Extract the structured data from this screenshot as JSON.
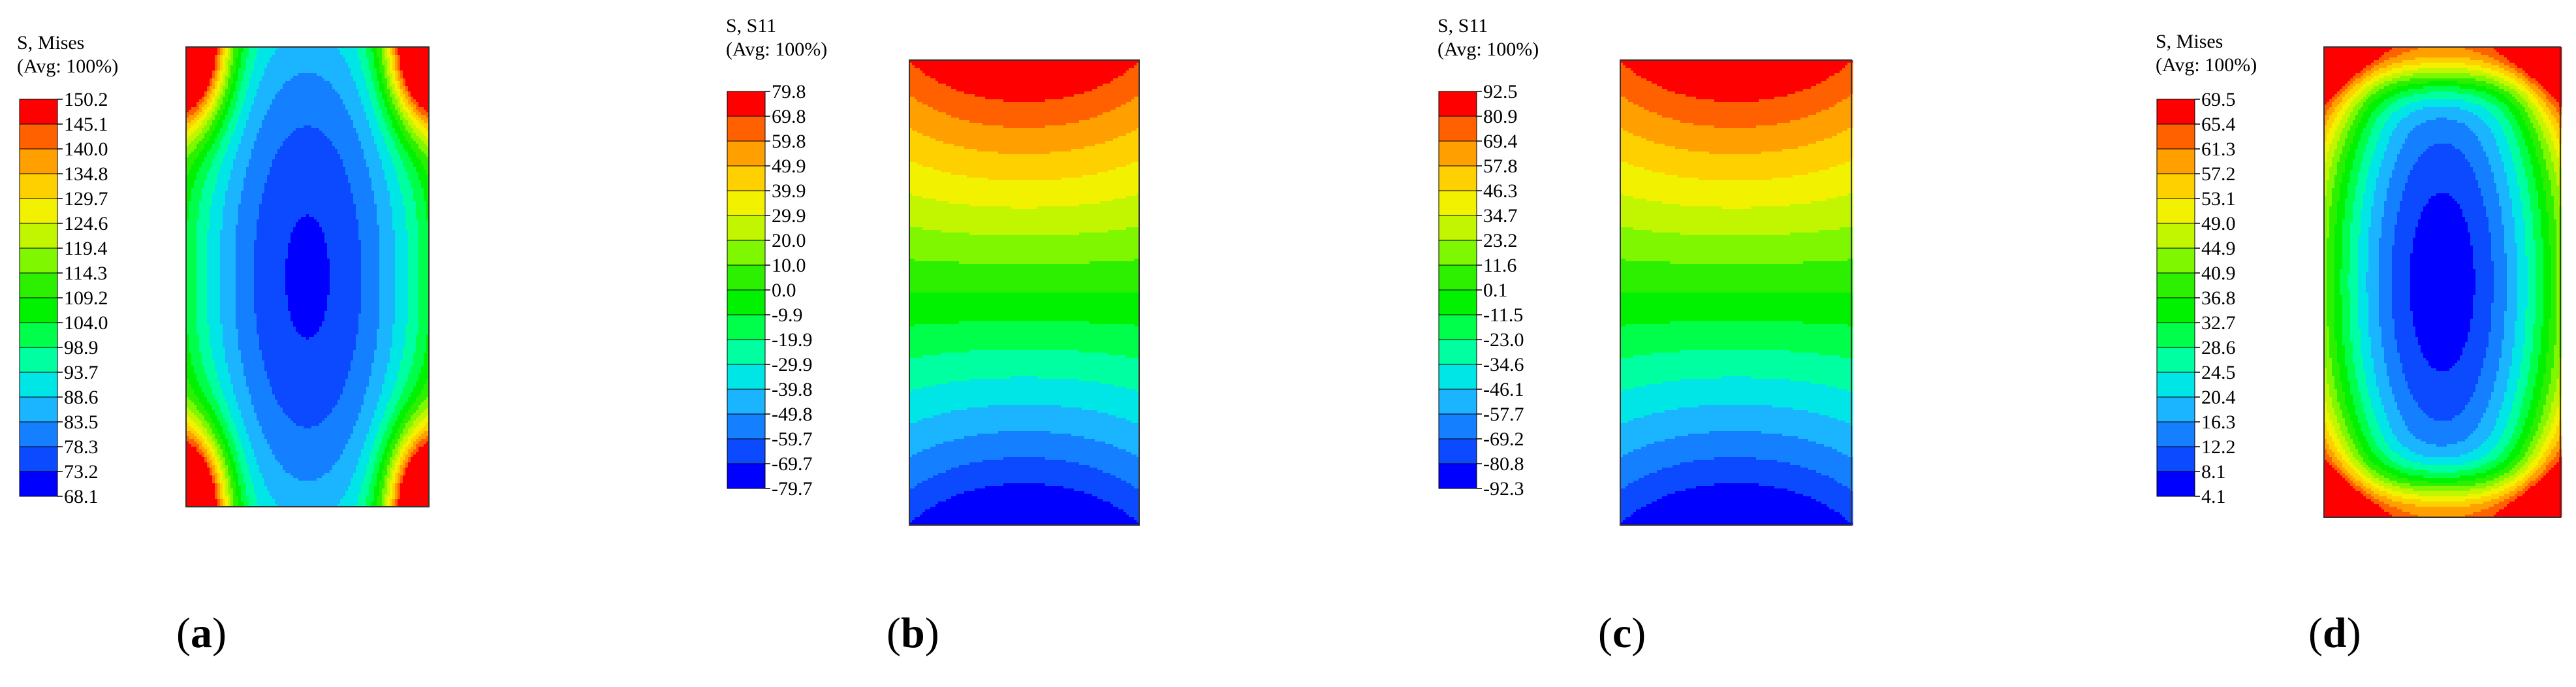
{
  "palette": [
    "#0000ff",
    "#0b4aff",
    "#1480ff",
    "#1bb4ff",
    "#00e6e6",
    "#00ffa0",
    "#00ff4a",
    "#00f200",
    "#2cf000",
    "#7ef700",
    "#c2f500",
    "#f2f200",
    "#ffd000",
    "#ff9f00",
    "#ff6000",
    "#ff0000"
  ],
  "panels": [
    {
      "id": "a",
      "title_line1": "S, Mises",
      "title_line2": "(Avg: 100%)",
      "levels": [
        "150.2",
        "145.1",
        "140.0",
        "134.8",
        "129.7",
        "124.6",
        "119.4",
        "114.3",
        "109.2",
        "104.0",
        "98.9",
        "93.7",
        "88.6",
        "83.5",
        "78.3",
        "73.2",
        "68.1"
      ],
      "field": "mises_low_center",
      "caption_open": "(",
      "caption_letter": "a",
      "caption_close": ")"
    },
    {
      "id": "b",
      "title_line1": "S, S11",
      "title_line2": "(Avg: 100%)",
      "levels": [
        "79.8",
        "69.8",
        "59.8",
        "49.9",
        "39.9",
        "29.9",
        "20.0",
        "10.0",
        "0.0",
        "-9.9",
        "-19.9",
        "-29.9",
        "-39.8",
        "-49.8",
        "-59.7",
        "-69.7",
        "-79.7"
      ],
      "field": "bending",
      "caption_open": "(",
      "caption_letter": "b",
      "caption_close": ")"
    },
    {
      "id": "c",
      "title_line1": "S, S11",
      "title_line2": "(Avg: 100%)",
      "levels": [
        "92.5",
        "80.9",
        "69.4",
        "57.8",
        "46.3",
        "34.7",
        "23.2",
        "11.6",
        "0.1",
        "-11.5",
        "-23.0",
        "-34.6",
        "-46.1",
        "-57.7",
        "-69.2",
        "-80.8",
        "-92.3"
      ],
      "field": "bending",
      "caption_open": "(",
      "caption_letter": "c",
      "caption_close": ")"
    },
    {
      "id": "d",
      "title_line1": "S, Mises",
      "title_line2": "(Avg: 100%)",
      "levels": [
        "69.5",
        "65.4",
        "61.3",
        "57.2",
        "53.1",
        "49.0",
        "44.9",
        "40.9",
        "36.8",
        "32.7",
        "28.6",
        "24.5",
        "20.4",
        "16.3",
        "12.2",
        "8.1",
        "4.1"
      ],
      "field": "mises_low_center_hot_edges",
      "caption_open": "(",
      "caption_letter": "d",
      "caption_close": ")"
    }
  ]
}
